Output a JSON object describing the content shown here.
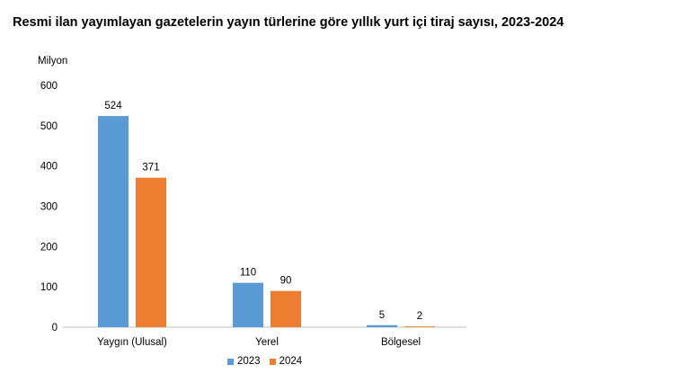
{
  "title": "Resmi ilan yayımlayan gazetelerin yayın türlerine göre yıllık yurt içi tiraj sayısı, 2023-2024",
  "chart_data": {
    "type": "bar",
    "ylabel": "Milyon",
    "xlabel": "",
    "ylim": [
      0,
      600
    ],
    "yticks": [
      0,
      100,
      200,
      300,
      400,
      500,
      600
    ],
    "grid": false,
    "legend_position": "bottom",
    "categories": [
      "Yaygın (Ulusal)",
      "Yerel",
      "Bölgesel"
    ],
    "series": [
      {
        "name": "2023",
        "color": "#5B9BD5",
        "values": [
          524,
          110,
          5
        ]
      },
      {
        "name": "2024",
        "color": "#ED7D31",
        "values": [
          371,
          90,
          2
        ]
      }
    ]
  }
}
